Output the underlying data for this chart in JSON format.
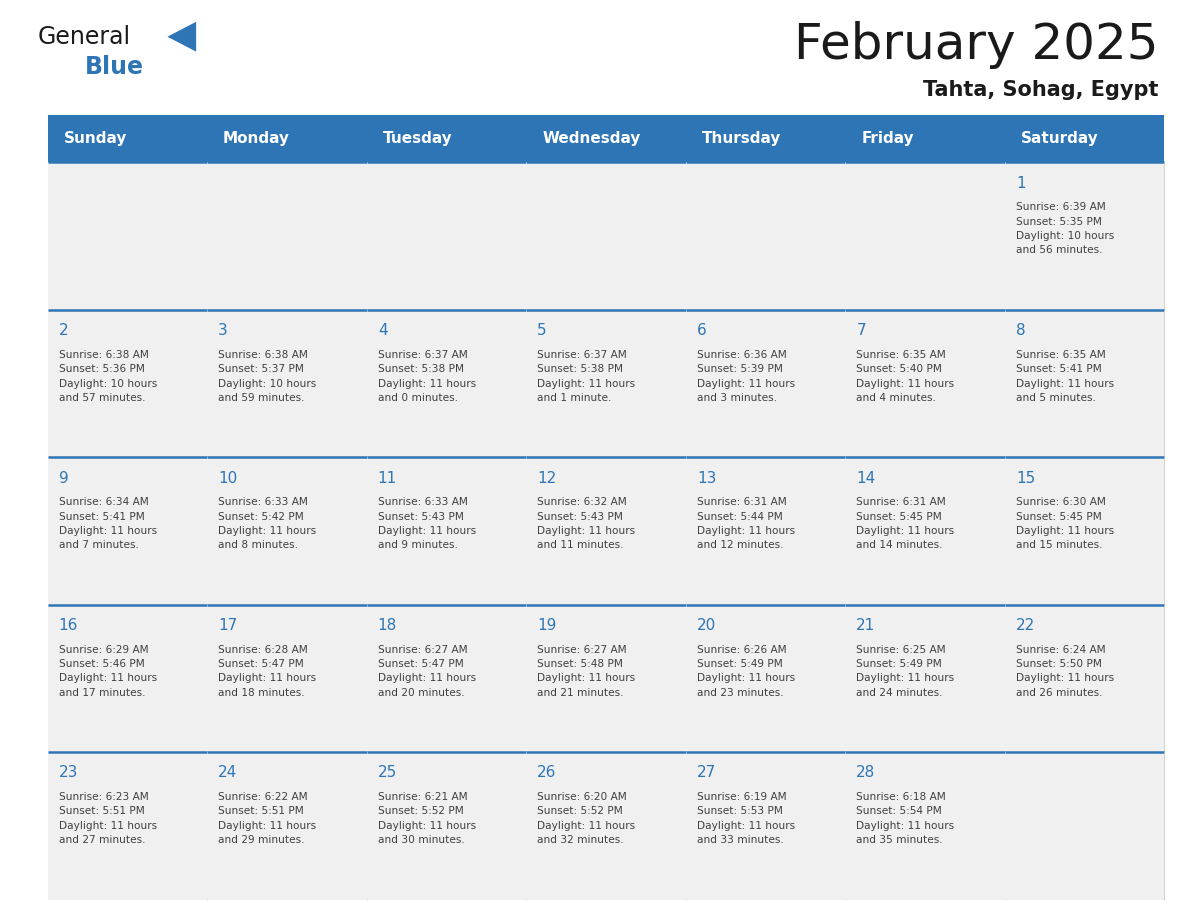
{
  "title": "February 2025",
  "subtitle": "Tahta, Sohag, Egypt",
  "header_bg": "#2E75B6",
  "header_text_color": "#FFFFFF",
  "cell_bg_light": "#F0F0F0",
  "day_number_color": "#2E75B6",
  "text_color": "#404040",
  "border_color": "#2E75B6",
  "days_of_week": [
    "Sunday",
    "Monday",
    "Tuesday",
    "Wednesday",
    "Thursday",
    "Friday",
    "Saturday"
  ],
  "weeks": [
    [
      {
        "day": null,
        "info": null
      },
      {
        "day": null,
        "info": null
      },
      {
        "day": null,
        "info": null
      },
      {
        "day": null,
        "info": null
      },
      {
        "day": null,
        "info": null
      },
      {
        "day": null,
        "info": null
      },
      {
        "day": 1,
        "info": "Sunrise: 6:39 AM\nSunset: 5:35 PM\nDaylight: 10 hours\nand 56 minutes."
      }
    ],
    [
      {
        "day": 2,
        "info": "Sunrise: 6:38 AM\nSunset: 5:36 PM\nDaylight: 10 hours\nand 57 minutes."
      },
      {
        "day": 3,
        "info": "Sunrise: 6:38 AM\nSunset: 5:37 PM\nDaylight: 10 hours\nand 59 minutes."
      },
      {
        "day": 4,
        "info": "Sunrise: 6:37 AM\nSunset: 5:38 PM\nDaylight: 11 hours\nand 0 minutes."
      },
      {
        "day": 5,
        "info": "Sunrise: 6:37 AM\nSunset: 5:38 PM\nDaylight: 11 hours\nand 1 minute."
      },
      {
        "day": 6,
        "info": "Sunrise: 6:36 AM\nSunset: 5:39 PM\nDaylight: 11 hours\nand 3 minutes."
      },
      {
        "day": 7,
        "info": "Sunrise: 6:35 AM\nSunset: 5:40 PM\nDaylight: 11 hours\nand 4 minutes."
      },
      {
        "day": 8,
        "info": "Sunrise: 6:35 AM\nSunset: 5:41 PM\nDaylight: 11 hours\nand 5 minutes."
      }
    ],
    [
      {
        "day": 9,
        "info": "Sunrise: 6:34 AM\nSunset: 5:41 PM\nDaylight: 11 hours\nand 7 minutes."
      },
      {
        "day": 10,
        "info": "Sunrise: 6:33 AM\nSunset: 5:42 PM\nDaylight: 11 hours\nand 8 minutes."
      },
      {
        "day": 11,
        "info": "Sunrise: 6:33 AM\nSunset: 5:43 PM\nDaylight: 11 hours\nand 9 minutes."
      },
      {
        "day": 12,
        "info": "Sunrise: 6:32 AM\nSunset: 5:43 PM\nDaylight: 11 hours\nand 11 minutes."
      },
      {
        "day": 13,
        "info": "Sunrise: 6:31 AM\nSunset: 5:44 PM\nDaylight: 11 hours\nand 12 minutes."
      },
      {
        "day": 14,
        "info": "Sunrise: 6:31 AM\nSunset: 5:45 PM\nDaylight: 11 hours\nand 14 minutes."
      },
      {
        "day": 15,
        "info": "Sunrise: 6:30 AM\nSunset: 5:45 PM\nDaylight: 11 hours\nand 15 minutes."
      }
    ],
    [
      {
        "day": 16,
        "info": "Sunrise: 6:29 AM\nSunset: 5:46 PM\nDaylight: 11 hours\nand 17 minutes."
      },
      {
        "day": 17,
        "info": "Sunrise: 6:28 AM\nSunset: 5:47 PM\nDaylight: 11 hours\nand 18 minutes."
      },
      {
        "day": 18,
        "info": "Sunrise: 6:27 AM\nSunset: 5:47 PM\nDaylight: 11 hours\nand 20 minutes."
      },
      {
        "day": 19,
        "info": "Sunrise: 6:27 AM\nSunset: 5:48 PM\nDaylight: 11 hours\nand 21 minutes."
      },
      {
        "day": 20,
        "info": "Sunrise: 6:26 AM\nSunset: 5:49 PM\nDaylight: 11 hours\nand 23 minutes."
      },
      {
        "day": 21,
        "info": "Sunrise: 6:25 AM\nSunset: 5:49 PM\nDaylight: 11 hours\nand 24 minutes."
      },
      {
        "day": 22,
        "info": "Sunrise: 6:24 AM\nSunset: 5:50 PM\nDaylight: 11 hours\nand 26 minutes."
      }
    ],
    [
      {
        "day": 23,
        "info": "Sunrise: 6:23 AM\nSunset: 5:51 PM\nDaylight: 11 hours\nand 27 minutes."
      },
      {
        "day": 24,
        "info": "Sunrise: 6:22 AM\nSunset: 5:51 PM\nDaylight: 11 hours\nand 29 minutes."
      },
      {
        "day": 25,
        "info": "Sunrise: 6:21 AM\nSunset: 5:52 PM\nDaylight: 11 hours\nand 30 minutes."
      },
      {
        "day": 26,
        "info": "Sunrise: 6:20 AM\nSunset: 5:52 PM\nDaylight: 11 hours\nand 32 minutes."
      },
      {
        "day": 27,
        "info": "Sunrise: 6:19 AM\nSunset: 5:53 PM\nDaylight: 11 hours\nand 33 minutes."
      },
      {
        "day": 28,
        "info": "Sunrise: 6:18 AM\nSunset: 5:54 PM\nDaylight: 11 hours\nand 35 minutes."
      },
      {
        "day": null,
        "info": null
      }
    ]
  ]
}
